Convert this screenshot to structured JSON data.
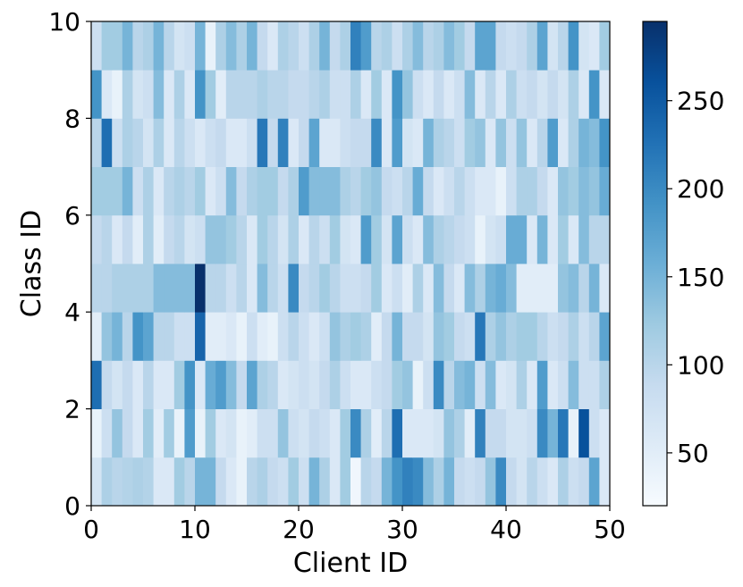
{
  "chart_data": {
    "type": "heatmap",
    "title": "",
    "xlabel": "Client ID",
    "ylabel": "Class ID",
    "xlim": [
      0,
      50
    ],
    "ylim": [
      0,
      10
    ],
    "x_ticks": [
      "0",
      "10",
      "20",
      "30",
      "40",
      "50"
    ],
    "y_ticks": [
      "0",
      "2",
      "4",
      "6",
      "8",
      "10"
    ],
    "colorbar": {
      "colormap": "Blues",
      "vmin": 20,
      "vmax": 295,
      "ticks": [
        "50",
        "100",
        "150",
        "200",
        "250"
      ]
    },
    "rows_class_0_to_9": [
      [
        70,
        110,
        100,
        105,
        110,
        105,
        60,
        60,
        120,
        100,
        150,
        150,
        90,
        60,
        40,
        100,
        110,
        90,
        80,
        120,
        80,
        150,
        110,
        60,
        120,
        30,
        100,
        90,
        150,
        190,
        210,
        200,
        140,
        110,
        150,
        90,
        80,
        90,
        130,
        200,
        90,
        70,
        100,
        80,
        60,
        110,
        80,
        90,
        170,
        60
      ],
      [
        40,
        80,
        130,
        90,
        60,
        120,
        50,
        120,
        40,
        180,
        40,
        120,
        60,
        70,
        40,
        50,
        80,
        80,
        130,
        80,
        70,
        90,
        80,
        60,
        120,
        200,
        110,
        50,
        100,
        230,
        60,
        60,
        60,
        70,
        130,
        110,
        50,
        210,
        90,
        90,
        70,
        70,
        80,
        200,
        150,
        220,
        40,
        260,
        80,
        60
      ],
      [
        230,
        90,
        70,
        90,
        60,
        100,
        60,
        60,
        120,
        190,
        60,
        160,
        180,
        140,
        90,
        170,
        110,
        100,
        60,
        70,
        80,
        70,
        90,
        110,
        80,
        60,
        60,
        80,
        90,
        120,
        130,
        40,
        80,
        200,
        100,
        140,
        150,
        80,
        140,
        60,
        70,
        110,
        60,
        180,
        60,
        80,
        140,
        80,
        80,
        110
      ],
      [
        50,
        130,
        150,
        100,
        190,
        170,
        100,
        100,
        80,
        80,
        240,
        50,
        50,
        60,
        40,
        80,
        50,
        40,
        80,
        100,
        80,
        60,
        80,
        130,
        110,
        120,
        110,
        50,
        90,
        150,
        90,
        90,
        70,
        130,
        120,
        90,
        80,
        220,
        110,
        130,
        110,
        120,
        120,
        100,
        80,
        90,
        110,
        80,
        100,
        170
      ],
      [
        100,
        100,
        110,
        110,
        110,
        110,
        140,
        140,
        140,
        140,
        295,
        100,
        100,
        80,
        100,
        60,
        140,
        100,
        80,
        200,
        90,
        100,
        120,
        100,
        80,
        80,
        90,
        120,
        60,
        80,
        50,
        110,
        60,
        140,
        90,
        60,
        140,
        110,
        150,
        160,
        140,
        50,
        50,
        50,
        50,
        130,
        140,
        100,
        150,
        60
      ],
      [
        90,
        100,
        60,
        90,
        50,
        110,
        50,
        90,
        100,
        70,
        80,
        130,
        130,
        120,
        100,
        60,
        120,
        100,
        70,
        110,
        60,
        100,
        80,
        120,
        70,
        60,
        180,
        120,
        70,
        170,
        80,
        60,
        140,
        110,
        100,
        90,
        80,
        40,
        70,
        80,
        160,
        160,
        60,
        150,
        60,
        120,
        60,
        140,
        100,
        100
      ],
      [
        120,
        120,
        120,
        150,
        80,
        110,
        60,
        100,
        110,
        100,
        120,
        60,
        80,
        140,
        90,
        110,
        120,
        120,
        90,
        110,
        180,
        140,
        140,
        140,
        110,
        100,
        120,
        130,
        90,
        80,
        100,
        160,
        90,
        60,
        80,
        100,
        80,
        60,
        60,
        40,
        80,
        110,
        110,
        90,
        60,
        130,
        120,
        140,
        130,
        160
      ],
      [
        100,
        230,
        80,
        110,
        100,
        70,
        110,
        60,
        100,
        80,
        60,
        80,
        90,
        60,
        60,
        80,
        220,
        90,
        210,
        60,
        90,
        170,
        60,
        60,
        80,
        90,
        90,
        200,
        60,
        180,
        70,
        60,
        150,
        110,
        100,
        80,
        120,
        130,
        60,
        130,
        80,
        130,
        60,
        100,
        180,
        60,
        110,
        150,
        140,
        190
      ],
      [
        190,
        60,
        40,
        110,
        70,
        80,
        140,
        60,
        110,
        60,
        190,
        120,
        50,
        100,
        100,
        100,
        110,
        100,
        100,
        90,
        90,
        100,
        110,
        80,
        80,
        110,
        60,
        120,
        60,
        190,
        130,
        80,
        60,
        90,
        60,
        80,
        140,
        60,
        100,
        60,
        110,
        80,
        90,
        70,
        90,
        70,
        110,
        60,
        190,
        60
      ],
      [
        80,
        120,
        120,
        150,
        100,
        110,
        150,
        100,
        70,
        80,
        150,
        40,
        110,
        140,
        110,
        150,
        90,
        60,
        110,
        100,
        80,
        110,
        150,
        90,
        110,
        210,
        180,
        100,
        110,
        80,
        110,
        140,
        100,
        110,
        140,
        120,
        90,
        170,
        170,
        90,
        80,
        90,
        110,
        170,
        70,
        100,
        190,
        70,
        60,
        120
      ]
    ]
  }
}
